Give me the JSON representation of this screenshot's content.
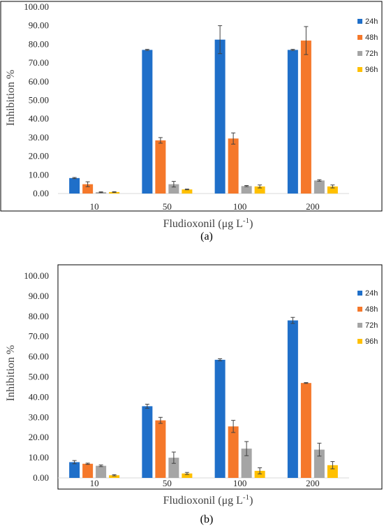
{
  "chart_data": [
    {
      "type": "bar",
      "panel_label": "(a)",
      "categories": [
        "10",
        "50",
        "100",
        "200"
      ],
      "xlabel": "Fludioxonil (μg L",
      "xlabel_sup": "-1",
      "xlabel_end": ")",
      "ylabel": "Inhibition %",
      "ylim": [
        0,
        100
      ],
      "yticks": [
        "0.00",
        "10.00",
        "20.00",
        "30.00",
        "40.00",
        "50.00",
        "60.00",
        "70.00",
        "80.00",
        "90.00",
        "100.00"
      ],
      "legend_position": "right",
      "series": [
        {
          "name": "24h",
          "color": "#1f6fc9",
          "values": [
            8.3,
            77.0,
            82.5,
            77.0
          ],
          "errors": [
            0.3,
            0.3,
            7.5,
            0.3
          ]
        },
        {
          "name": "48h",
          "color": "#f5782a",
          "values": [
            5.0,
            28.5,
            29.5,
            82.0
          ],
          "errors": [
            1.3,
            1.5,
            3.0,
            7.5
          ]
        },
        {
          "name": "72h",
          "color": "#a5a5a5",
          "values": [
            0.7,
            5.0,
            4.0,
            7.0
          ],
          "errors": [
            0.2,
            1.5,
            0.3,
            0.4
          ]
        },
        {
          "name": "96h",
          "color": "#ffc000",
          "values": [
            0.8,
            2.2,
            3.8,
            3.8
          ],
          "errors": [
            0.2,
            0.2,
            0.8,
            0.8
          ]
        }
      ]
    },
    {
      "type": "bar",
      "panel_label": "(b)",
      "categories": [
        "10",
        "50",
        "100",
        "200"
      ],
      "xlabel": "Fludioxonil (μg L",
      "xlabel_sup": "-1",
      "xlabel_end": ")",
      "ylabel": "Inhibition %",
      "ylim": [
        0,
        100
      ],
      "yticks": [
        "0.00",
        "10.00",
        "20.00",
        "30.00",
        "40.00",
        "50.00",
        "60.00",
        "70.00",
        "80.00",
        "90.00",
        "100.00"
      ],
      "legend_position": "right",
      "series": [
        {
          "name": "24h",
          "color": "#1f6fc9",
          "values": [
            7.8,
            35.5,
            58.5,
            78.0
          ],
          "errors": [
            0.8,
            1.0,
            0.5,
            1.5
          ]
        },
        {
          "name": "48h",
          "color": "#f5782a",
          "values": [
            7.0,
            28.5,
            25.5,
            47.0
          ],
          "errors": [
            0.3,
            1.5,
            3.0,
            0.2
          ]
        },
        {
          "name": "72h",
          "color": "#a5a5a5",
          "values": [
            6.0,
            10.0,
            14.5,
            14.0
          ],
          "errors": [
            0.4,
            2.8,
            3.5,
            3.2
          ]
        },
        {
          "name": "96h",
          "color": "#ffc000",
          "values": [
            1.3,
            2.2,
            3.5,
            6.3
          ],
          "errors": [
            0.3,
            0.5,
            1.5,
            1.8
          ]
        }
      ]
    }
  ]
}
